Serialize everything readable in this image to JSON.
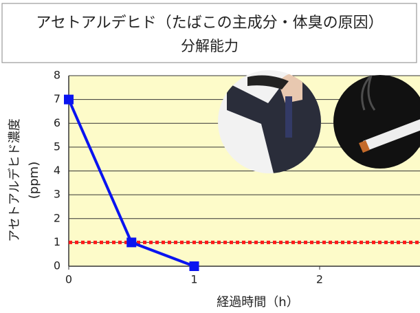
{
  "chart_data": {
    "type": "line",
    "title": "アセトアルデヒド（たばこの主成分・体臭の原因）",
    "subtitle": "分解能力",
    "y_label": "アセトアルデヒド濃度",
    "y_unit_label": "(ppm)",
    "x_label": "経過時間（h）",
    "x": [
      0,
      0.5,
      1
    ],
    "series": [
      {
        "color": "#0a14f0",
        "values": [
          7,
          1,
          0
        ]
      }
    ],
    "reference_line": {
      "value": 1,
      "color": "#ff1a1a"
    },
    "xlim": [
      0,
      2.8
    ],
    "xticks": [
      0,
      1,
      2
    ],
    "ylim": [
      0,
      8
    ],
    "yticks": [
      0,
      1,
      2,
      3,
      4,
      5,
      6,
      7,
      8
    ],
    "grid": true
  }
}
